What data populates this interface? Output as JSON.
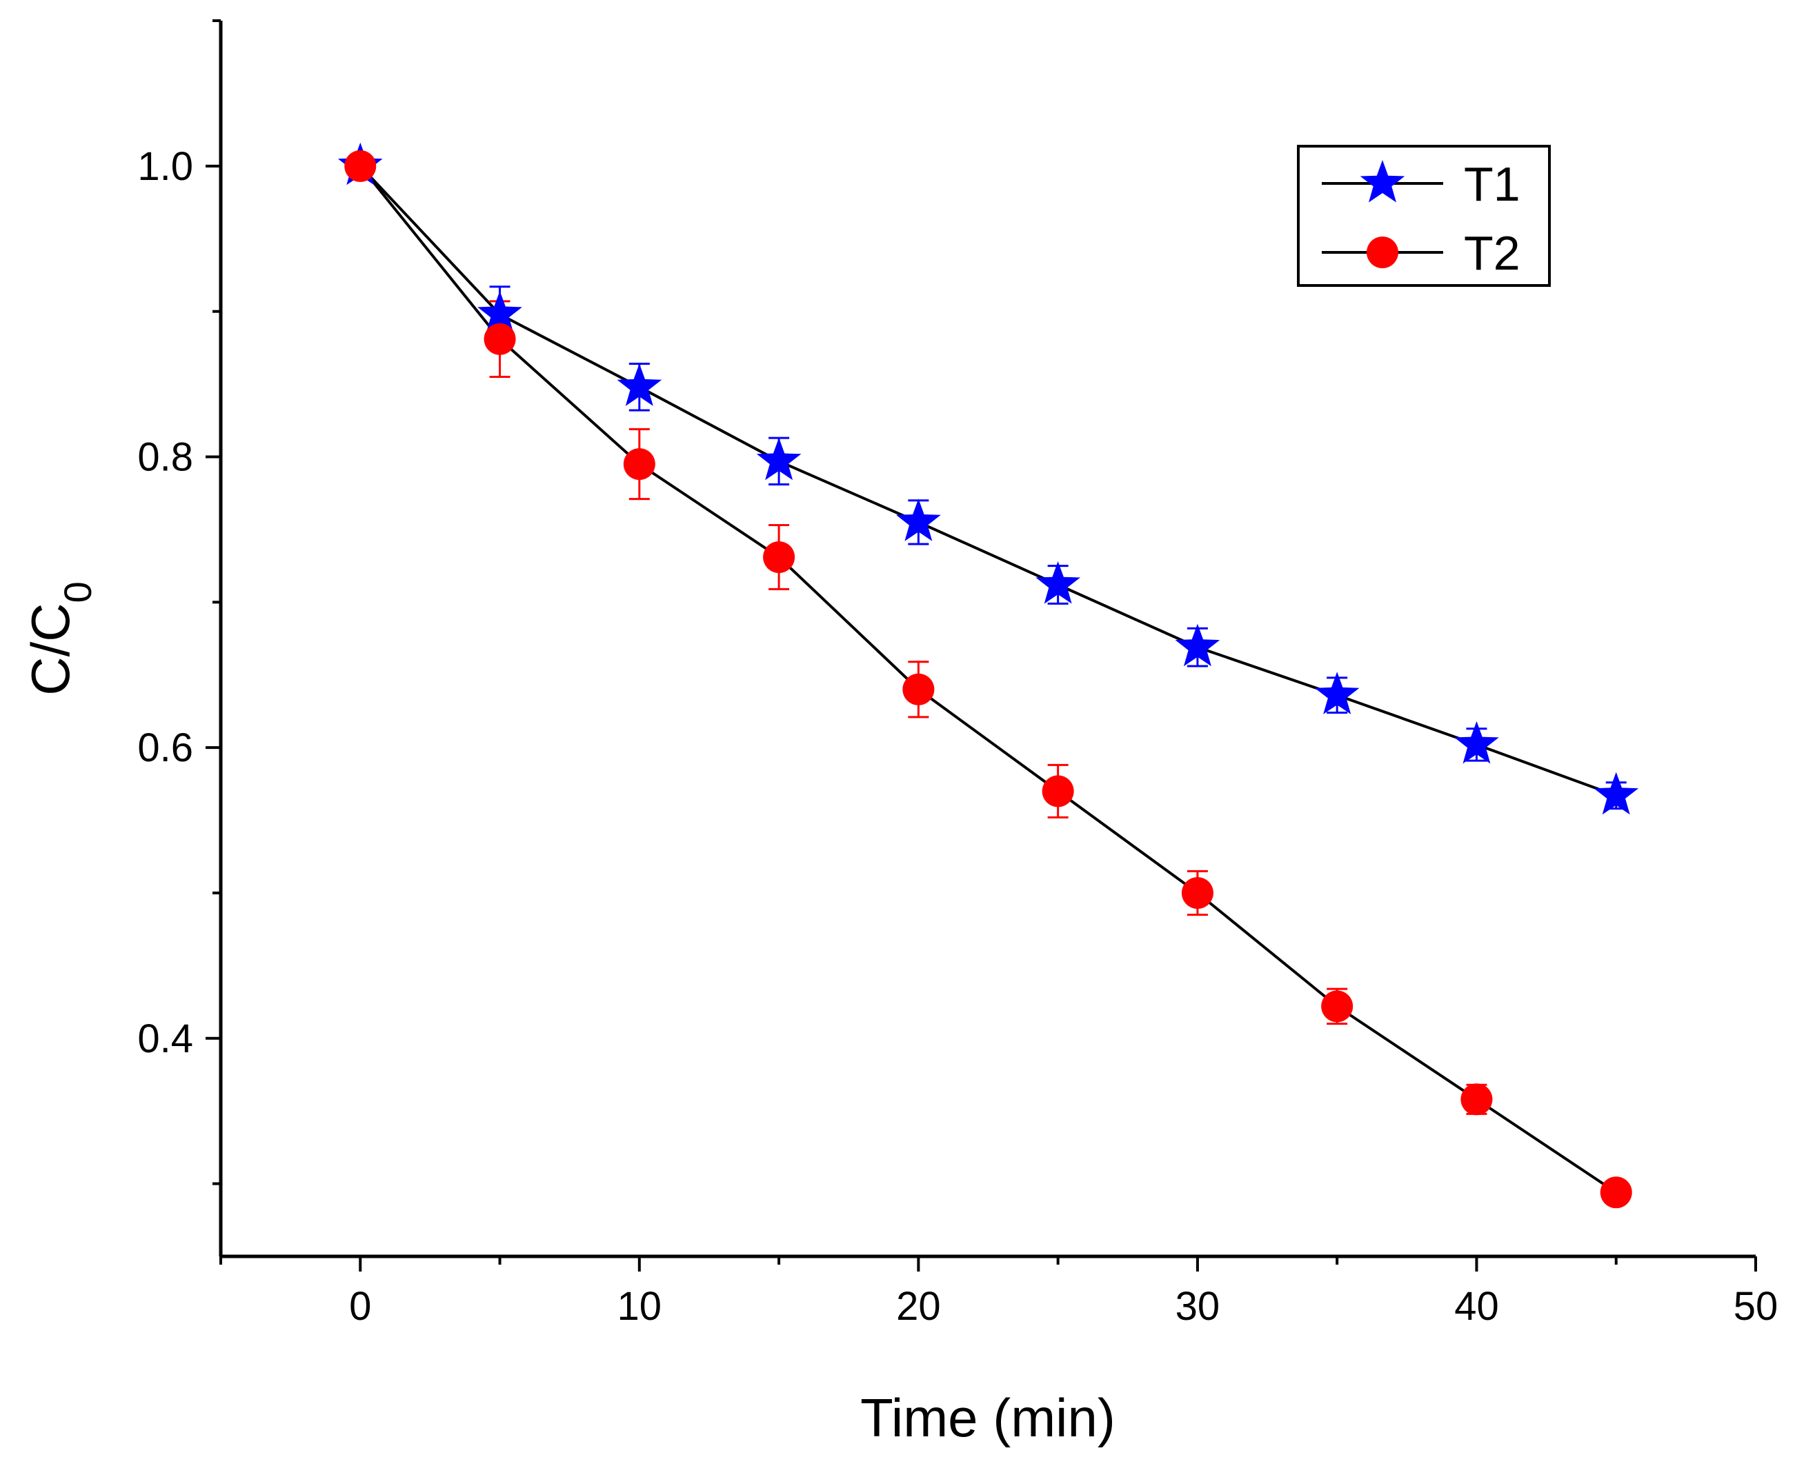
{
  "chart_data": {
    "type": "line",
    "title": "",
    "xlabel": "Time (min)",
    "ylabel_main": "C/C",
    "ylabel_sub": "0",
    "xlim": [
      -5,
      50
    ],
    "ylim": [
      0.25,
      1.1
    ],
    "x_ticks": [
      0,
      10,
      20,
      30,
      40,
      50
    ],
    "x_tick_labels": [
      "0",
      "10",
      "20",
      "30",
      "40",
      "50"
    ],
    "x_minor_ticks": [
      -5,
      5,
      15,
      25,
      35,
      45
    ],
    "y_ticks": [
      0.4,
      0.6,
      0.8,
      1.0
    ],
    "y_tick_labels": [
      "0.4",
      "0.6",
      "0.8",
      "1.0"
    ],
    "y_minor_ticks": [
      0.3,
      0.5,
      0.7,
      0.9,
      1.1
    ],
    "grid": false,
    "legend_position": "top-right",
    "x": [
      0,
      5,
      10,
      15,
      20,
      25,
      30,
      35,
      40,
      45
    ],
    "series": [
      {
        "name": "T1",
        "marker": "star",
        "color": "#0000ff",
        "line_color": "#000000",
        "values": [
          1.0,
          0.898,
          0.848,
          0.797,
          0.755,
          0.712,
          0.669,
          0.636,
          0.602,
          0.567
        ],
        "errors": [
          0.0,
          0.019,
          0.016,
          0.016,
          0.015,
          0.013,
          0.013,
          0.012,
          0.011,
          0.009
        ]
      },
      {
        "name": "T2",
        "marker": "circle",
        "color": "#ff0000",
        "line_color": "#000000",
        "values": [
          1.0,
          0.881,
          0.795,
          0.731,
          0.64,
          0.57,
          0.5,
          0.422,
          0.358,
          0.294
        ],
        "errors": [
          0.0,
          0.026,
          0.024,
          0.022,
          0.019,
          0.018,
          0.015,
          0.012,
          0.01,
          0.007
        ]
      }
    ]
  }
}
